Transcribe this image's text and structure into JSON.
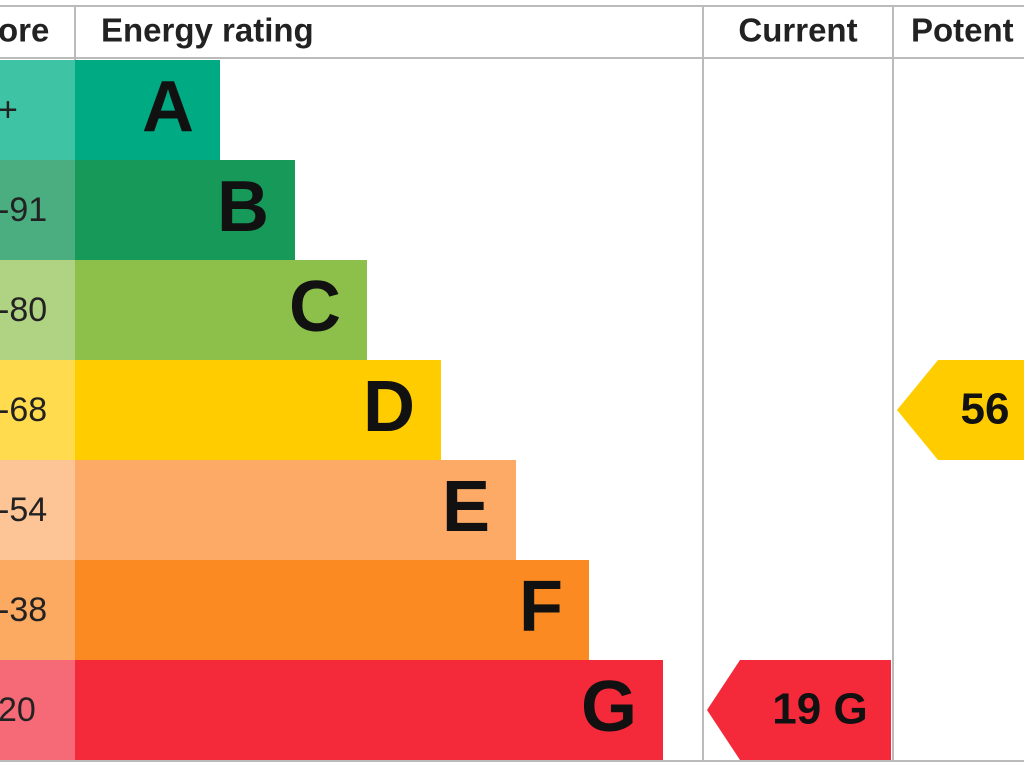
{
  "header": {
    "score": "ore",
    "rating": "Energy rating",
    "current": "Current",
    "potential": "Potent"
  },
  "rows": [
    {
      "score": "+",
      "letter": "A"
    },
    {
      "score": "-91",
      "letter": "B"
    },
    {
      "score": "-80",
      "letter": "C"
    },
    {
      "score": "-68",
      "letter": "D"
    },
    {
      "score": "-54",
      "letter": "E"
    },
    {
      "score": "-38",
      "letter": "F"
    },
    {
      "score": "20",
      "letter": "G"
    }
  ],
  "current": "19 G",
  "potential": "56"
}
